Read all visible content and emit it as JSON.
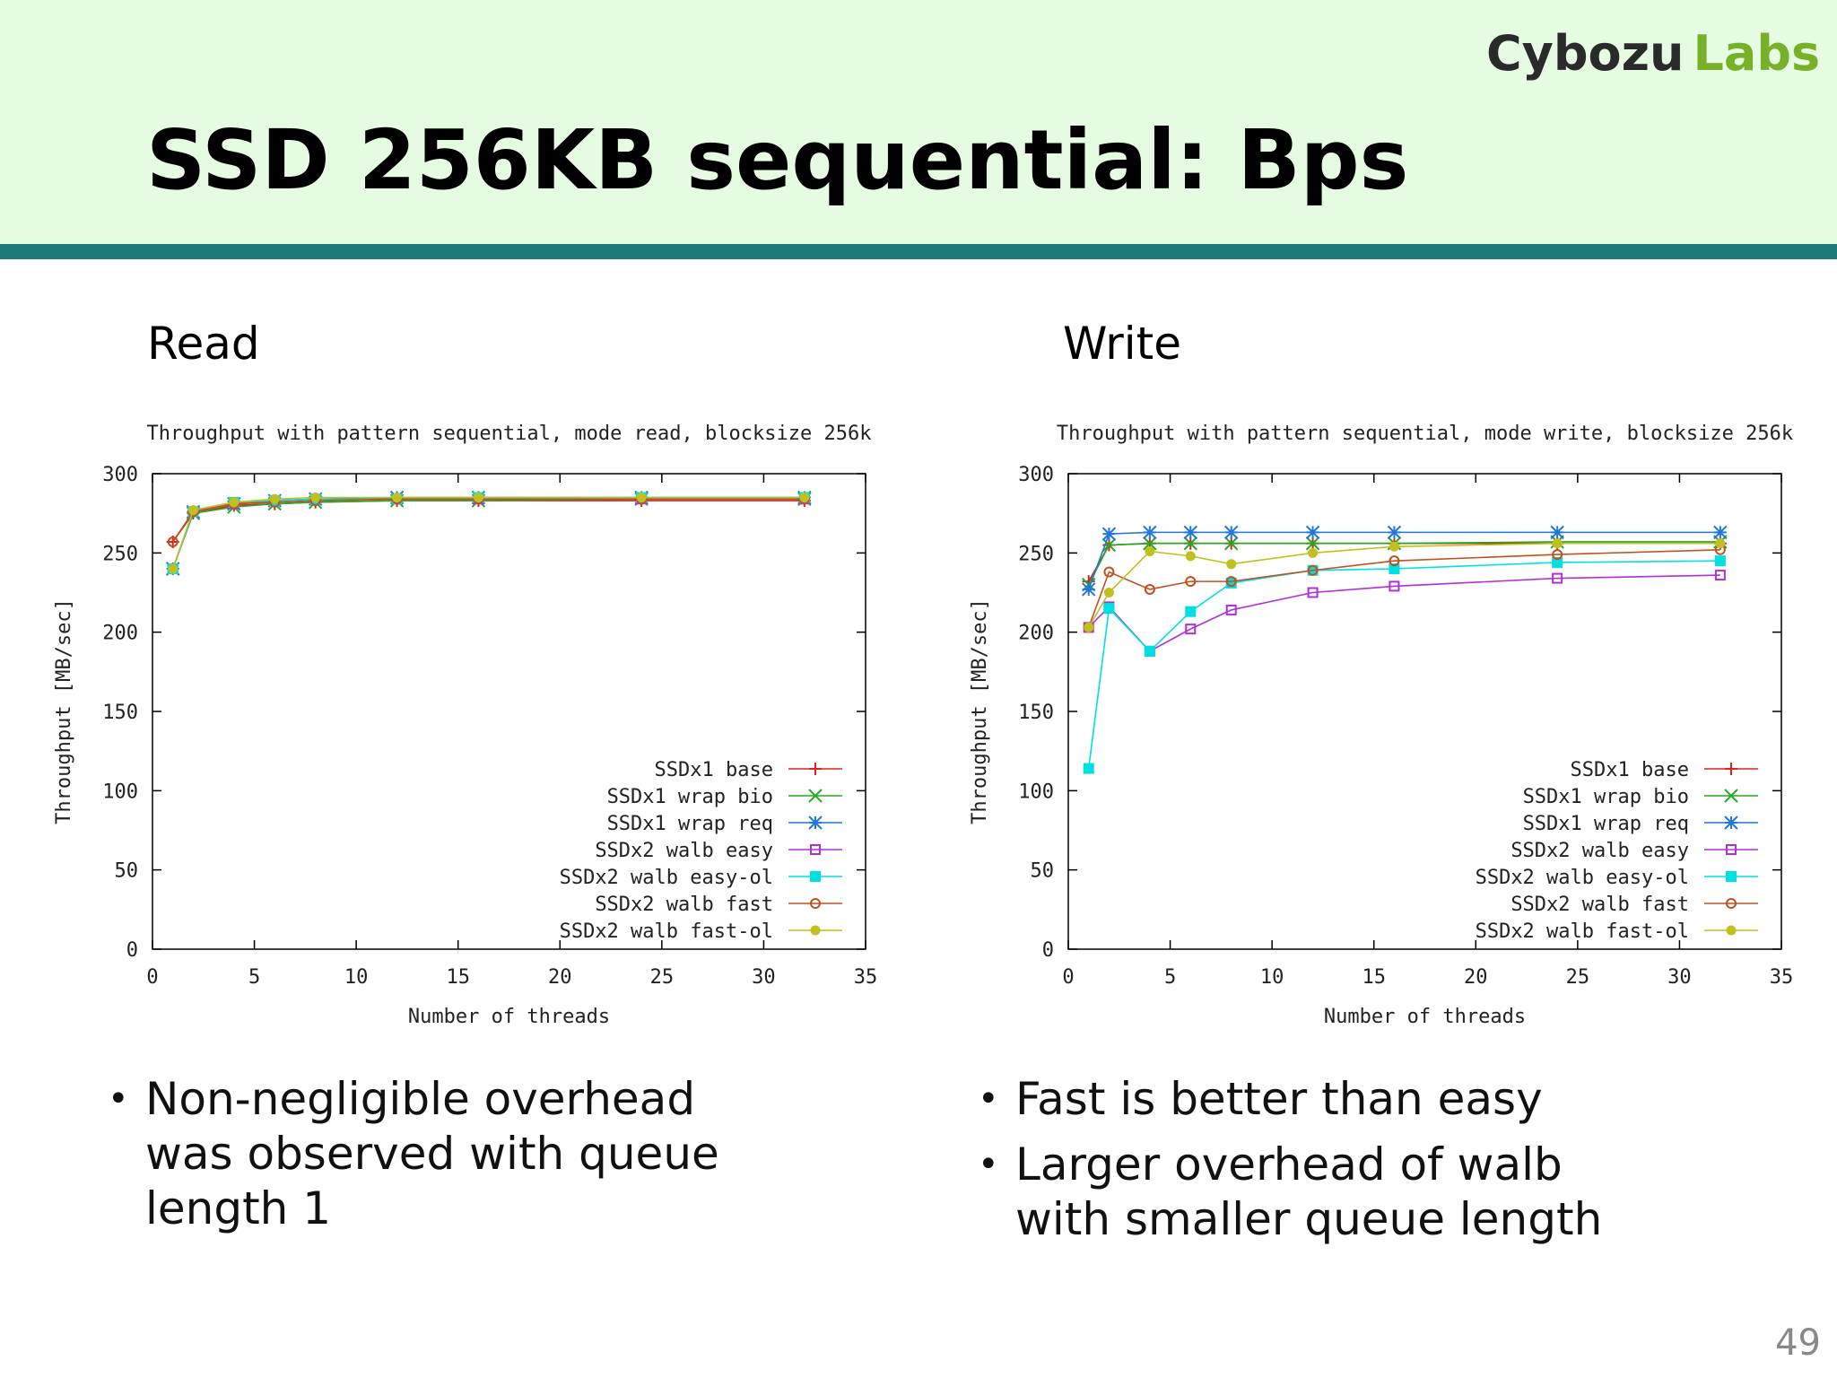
{
  "header": {
    "logo": [
      "Cybozu",
      "Labs"
    ],
    "title": "SSD 256KB sequential: Bps"
  },
  "chart_data": [
    {
      "type": "line",
      "heading": "Read",
      "title": "Throughput with pattern sequential, mode read, blocksize 256k",
      "x_label": "Number of threads",
      "y_label": "Throughput [MB/sec]",
      "x": [
        1,
        2,
        4,
        6,
        8,
        12,
        16,
        24,
        32
      ],
      "xlim": [
        0,
        35
      ],
      "xticks": [
        0,
        5,
        10,
        15,
        20,
        25,
        30,
        35
      ],
      "ylim": [
        0,
        300
      ],
      "yticks": [
        0,
        50,
        100,
        150,
        200,
        250,
        300
      ],
      "legend": "lower right",
      "series": [
        {
          "name": "SSDx1 base",
          "color": "#e02020",
          "marker": "plus",
          "values": [
            257,
            275,
            280,
            281,
            282,
            283,
            283,
            283,
            283
          ]
        },
        {
          "name": "SSDx1 wrap bio",
          "color": "#22aa22",
          "marker": "cross",
          "values": [
            240,
            275,
            279,
            281,
            282,
            283,
            283,
            284,
            284
          ]
        },
        {
          "name": "SSDx1 wrap req",
          "color": "#2277dd",
          "marker": "star",
          "values": [
            240,
            276,
            281,
            283,
            284,
            285,
            285,
            285,
            285
          ]
        },
        {
          "name": "SSDx2 walb easy",
          "color": "#b030d8",
          "marker": "open-square",
          "values": [
            240,
            276,
            281,
            283,
            284,
            284,
            284,
            284,
            284
          ]
        },
        {
          "name": "SSDx2 walb easy-ol",
          "color": "#00e0e0",
          "marker": "square",
          "values": [
            240,
            276,
            282,
            283,
            284,
            284,
            285,
            285,
            285
          ]
        },
        {
          "name": "SSDx2 walb fast",
          "color": "#c05020",
          "marker": "open-circle",
          "values": [
            257,
            276,
            281,
            282,
            283,
            284,
            284,
            284,
            284
          ]
        },
        {
          "name": "SSDx2 walb fast-ol",
          "color": "#c0c020",
          "marker": "circle",
          "values": [
            240,
            277,
            282,
            284,
            285,
            285,
            285,
            285,
            285
          ]
        }
      ]
    },
    {
      "type": "line",
      "heading": "Write",
      "title": "Throughput with pattern sequential, mode write, blocksize 256k",
      "x_label": "Number of threads",
      "y_label": "Throughput [MB/sec]",
      "x": [
        1,
        2,
        4,
        6,
        8,
        12,
        16,
        24,
        32
      ],
      "xlim": [
        0,
        35
      ],
      "xticks": [
        0,
        5,
        10,
        15,
        20,
        25,
        30,
        35
      ],
      "ylim": [
        0,
        300
      ],
      "yticks": [
        0,
        50,
        100,
        150,
        200,
        250,
        300
      ],
      "legend": "lower right",
      "series": [
        {
          "name": "SSDx1 base",
          "color": "#e02020",
          "marker": "plus",
          "values": [
            232,
            255,
            256,
            256,
            256,
            256,
            256,
            256,
            256
          ]
        },
        {
          "name": "SSDx1 wrap bio",
          "color": "#22aa22",
          "marker": "cross",
          "values": [
            230,
            255,
            256,
            256,
            256,
            256,
            256,
            257,
            257
          ]
        },
        {
          "name": "SSDx1 wrap req",
          "color": "#2277dd",
          "marker": "star",
          "values": [
            227,
            262,
            263,
            263,
            263,
            263,
            263,
            263,
            263
          ]
        },
        {
          "name": "SSDx2 walb easy",
          "color": "#b030d8",
          "marker": "open-square",
          "values": [
            203,
            216,
            188,
            202,
            214,
            225,
            229,
            234,
            236
          ]
        },
        {
          "name": "SSDx2 walb easy-ol",
          "color": "#00e0e0",
          "marker": "square",
          "values": [
            114,
            215,
            188,
            213,
            231,
            239,
            240,
            244,
            245
          ]
        },
        {
          "name": "SSDx2 walb fast",
          "color": "#c05020",
          "marker": "open-circle",
          "values": [
            203,
            238,
            227,
            232,
            232,
            239,
            245,
            249,
            252
          ]
        },
        {
          "name": "SSDx2 walb fast-ol",
          "color": "#c0c020",
          "marker": "circle",
          "values": [
            203,
            225,
            251,
            248,
            243,
            250,
            254,
            256,
            256
          ]
        }
      ]
    }
  ],
  "bullets": {
    "left": [
      "Non-negligible overhead was observed with queue length 1"
    ],
    "right": [
      "Fast is better than easy",
      "Larger overhead of walb with smaller queue length"
    ]
  },
  "page_number": "49"
}
